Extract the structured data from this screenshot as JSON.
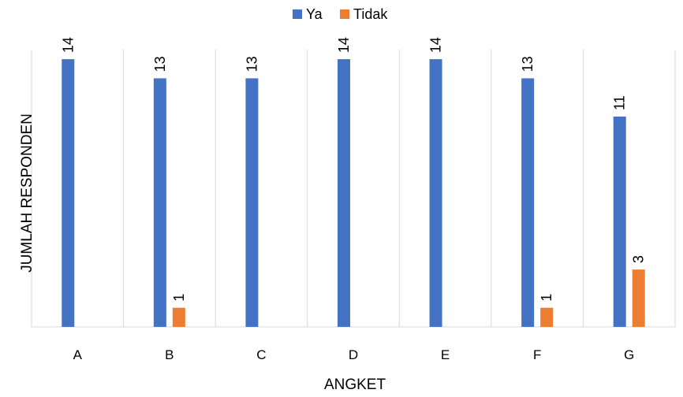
{
  "chart_data": {
    "type": "bar",
    "title": "",
    "xlabel": "ANGKET",
    "ylabel": "JUMLAH RESPONDEN",
    "categories": [
      "A",
      "B",
      "C",
      "D",
      "E",
      "F",
      "G"
    ],
    "series": [
      {
        "name": "Ya",
        "color": "#4472C4",
        "values": [
          14,
          13,
          13,
          14,
          14,
          13,
          11
        ]
      },
      {
        "name": "Tidak",
        "color": "#ED7D31",
        "values": [
          0,
          1,
          0,
          0,
          0,
          1,
          3
        ]
      }
    ],
    "data_labels": [
      [
        "14",
        "13",
        "13",
        "14",
        "14",
        "13",
        "11"
      ],
      [
        "",
        "1",
        "",
        "",
        "",
        "1",
        "3"
      ]
    ],
    "ylim": [
      0,
      14
    ],
    "grid": "vertical",
    "legend": "top-center"
  }
}
